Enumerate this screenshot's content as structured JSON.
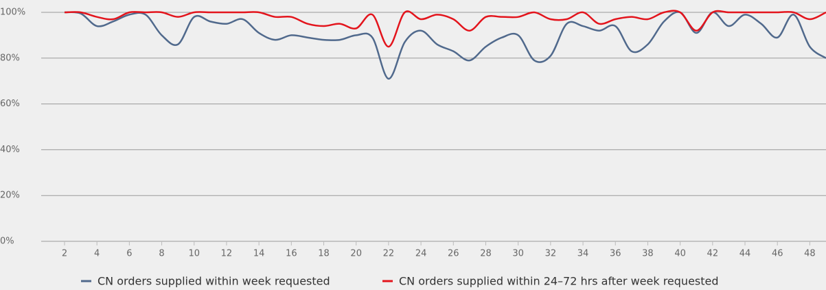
{
  "chart_data": {
    "type": "line",
    "x": [
      2,
      3,
      4,
      5,
      6,
      7,
      8,
      9,
      10,
      11,
      12,
      13,
      14,
      15,
      16,
      17,
      18,
      19,
      20,
      21,
      22,
      23,
      24,
      25,
      26,
      27,
      28,
      29,
      30,
      31,
      32,
      33,
      34,
      35,
      36,
      37,
      38,
      39,
      40,
      41,
      42,
      43,
      44,
      45,
      46,
      47,
      48,
      49
    ],
    "series": [
      {
        "name": "CN orders supplied within week requested",
        "color": "#50698c",
        "values": [
          100,
          99.5,
          94,
          96,
          99,
          99,
          90,
          86,
          98,
          96,
          95,
          97,
          91,
          88,
          90,
          89,
          88,
          88,
          90,
          89,
          71,
          87,
          92,
          86,
          83,
          79,
          85,
          89,
          90,
          79,
          81,
          95,
          94,
          92,
          94,
          83,
          86,
          96,
          100,
          91,
          100,
          94,
          99,
          95,
          89,
          99,
          85,
          80
        ]
      },
      {
        "name": "CN orders supplied within 24–72 hrs after week requested",
        "color": "#e3141c",
        "values": [
          100,
          100,
          98,
          97,
          100,
          100,
          100,
          98,
          100,
          100,
          100,
          100,
          100,
          98,
          98,
          95,
          94,
          95,
          93,
          99,
          85,
          100,
          97,
          99,
          97,
          92,
          98,
          98,
          98,
          100,
          97,
          97,
          100,
          95,
          97,
          98,
          97,
          100,
          100,
          92,
          100,
          100,
          100,
          100,
          100,
          100,
          97,
          100
        ]
      }
    ],
    "xlim": [
      0.56,
      49
    ],
    "xticks": [
      2,
      4,
      6,
      8,
      10,
      12,
      14,
      16,
      18,
      20,
      22,
      24,
      26,
      28,
      30,
      32,
      34,
      36,
      38,
      40,
      42,
      44,
      46,
      48
    ],
    "ylim": [
      0,
      100
    ],
    "yticks": [
      {
        "value": 0,
        "label": "0%"
      },
      {
        "value": 20,
        "label": "20%"
      },
      {
        "value": 40,
        "label": "40%"
      },
      {
        "value": 60,
        "label": "60%"
      },
      {
        "value": 80,
        "label": "80%"
      },
      {
        "value": 100,
        "label": "100%"
      }
    ],
    "grid": true
  }
}
